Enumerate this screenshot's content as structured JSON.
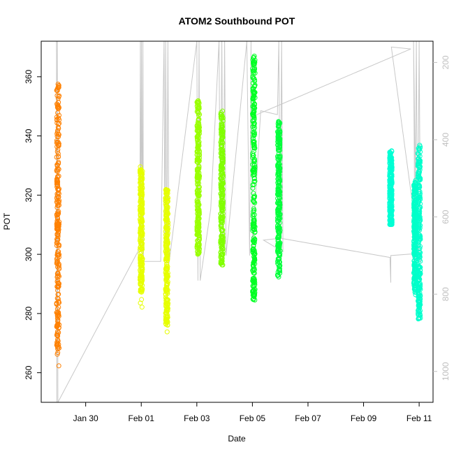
{
  "chart_data": {
    "type": "scatter",
    "title": "ATOM2 Southbound POT",
    "xlabel": "Date",
    "ylabel": "POT",
    "y2label": "",
    "ylim": [
      250,
      372
    ],
    "y2lim": [
      1080,
      145
    ],
    "x_tick_labels": [
      "Jan 30",
      "Feb 01",
      "Feb 03",
      "Feb 05",
      "Feb 07",
      "Feb 09",
      "Feb 11"
    ],
    "x_tick_days": [
      30,
      32,
      34,
      36,
      38,
      40,
      42
    ],
    "xlim_days": [
      28.4,
      42.5
    ],
    "y_ticks": [
      260,
      280,
      300,
      320,
      340,
      360
    ],
    "y2_ticks": [
      200,
      400,
      600,
      800,
      1000
    ],
    "grid": false,
    "legend": "none",
    "series": [
      {
        "color": "#ff8000",
        "day": 29.0,
        "ymin": 254,
        "ymax": 360,
        "dense_min": 268,
        "dense_max": 360
      },
      {
        "color": "#e6ff00",
        "day": 32.0,
        "ymin": 280,
        "ymax": 330,
        "dense_min": 287,
        "dense_max": 329
      },
      {
        "color": "#e6ff00",
        "day": 32.92,
        "ymin": 272,
        "ymax": 322,
        "dense_min": 276,
        "dense_max": 322
      },
      {
        "color": "#99ff00",
        "day": 34.05,
        "ymin": 300,
        "ymax": 352,
        "dense_min": 300,
        "dense_max": 352
      },
      {
        "color": "#80ff00",
        "day": 34.9,
        "ymin": 295,
        "ymax": 349,
        "dense_min": 296,
        "dense_max": 349
      },
      {
        "color": "#00ff22",
        "day": 36.05,
        "ymin": 281,
        "ymax": 367,
        "dense_min": 284,
        "dense_max": 367
      },
      {
        "color": "#00ff3a",
        "day": 36.95,
        "ymin": 292,
        "ymax": 345,
        "dense_min": 292,
        "dense_max": 345
      },
      {
        "color": "#00ffd4",
        "day": 40.98,
        "ymin": 310,
        "ymax": 335,
        "dense_min": 310,
        "dense_max": 335
      },
      {
        "color": "#00ffc8",
        "day": 41.85,
        "ymin": 283,
        "ymax": 326,
        "dense_min": 287,
        "dense_max": 325
      },
      {
        "color": "#00ffcc",
        "day": 42.0,
        "ymin": 274,
        "ymax": 337,
        "dense_min": 278,
        "dense_max": 336
      }
    ],
    "depth_trace": {
      "color": "#c8c8c8",
      "points": [
        [
          28.95,
          145
        ],
        [
          28.96,
          1080
        ],
        [
          28.98,
          145
        ],
        [
          29.0,
          1080
        ],
        [
          31.95,
          680
        ],
        [
          31.97,
          145
        ],
        [
          31.99,
          680
        ],
        [
          32.01,
          145
        ],
        [
          32.04,
          700
        ],
        [
          32.06,
          145
        ],
        [
          32.08,
          700
        ],
        [
          32.1,
          715
        ],
        [
          32.7,
          715
        ],
        [
          32.82,
          145
        ],
        [
          32.85,
          715
        ],
        [
          32.88,
          145
        ],
        [
          32.92,
          720
        ],
        [
          32.96,
          145
        ],
        [
          33.0,
          720
        ],
        [
          34.0,
          145
        ],
        [
          34.04,
          765
        ],
        [
          34.08,
          145
        ],
        [
          34.12,
          765
        ],
        [
          34.5,
          580
        ],
        [
          34.8,
          145
        ],
        [
          34.85,
          690
        ],
        [
          34.9,
          145
        ],
        [
          34.95,
          690
        ],
        [
          35.0,
          145
        ],
        [
          35.05,
          700
        ],
        [
          35.8,
          145
        ],
        [
          35.9,
          700
        ],
        [
          35.95,
          145
        ],
        [
          36.0,
          680
        ],
        [
          36.3,
          325
        ],
        [
          36.9,
          335
        ],
        [
          36.95,
          145
        ],
        [
          37.0,
          690
        ],
        [
          37.05,
          145
        ],
        [
          37.1,
          690
        ],
        [
          36.4,
          660
        ],
        [
          37.0,
          655
        ],
        [
          40.95,
          705
        ],
        [
          40.98,
          770
        ],
        [
          40.98,
          700
        ],
        [
          41.9,
          695
        ],
        [
          41.8,
          145
        ],
        [
          41.85,
          720
        ],
        [
          41.9,
          145
        ],
        [
          41.95,
          720
        ],
        [
          42.0,
          145
        ],
        [
          42.05,
          720
        ],
        [
          41.0,
          160
        ],
        [
          41.7,
          165
        ],
        [
          36.0,
          340
        ]
      ]
    }
  }
}
